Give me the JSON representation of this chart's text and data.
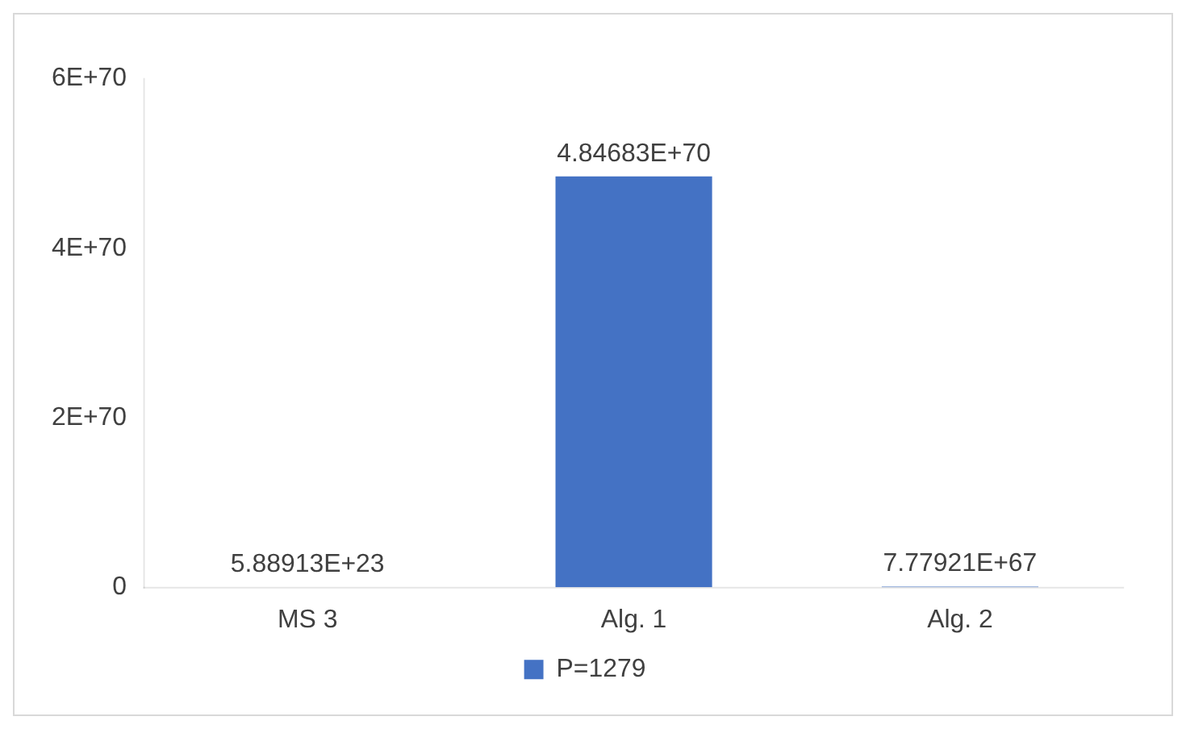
{
  "chart_data": {
    "type": "bar",
    "categories": [
      "MS 3",
      "Alg. 1",
      "Alg. 2"
    ],
    "series": [
      {
        "name": "P=1279",
        "color": "#4472c4",
        "values": [
          5.88913e+23,
          4.84683e+70,
          7.77921e+67
        ],
        "value_labels": [
          "5.88913E+23",
          "4.84683E+70",
          "7.77921E+67"
        ]
      }
    ],
    "ylim": [
      0,
      6e+70
    ],
    "yticks": [
      0,
      {
        "value": 2e+70,
        "label": "2E+70"
      },
      {
        "value": 4e+70,
        "label": "4E+70"
      },
      {
        "value": 6e+70,
        "label": "6E+70"
      }
    ],
    "grid": false,
    "legend": "bottom"
  }
}
